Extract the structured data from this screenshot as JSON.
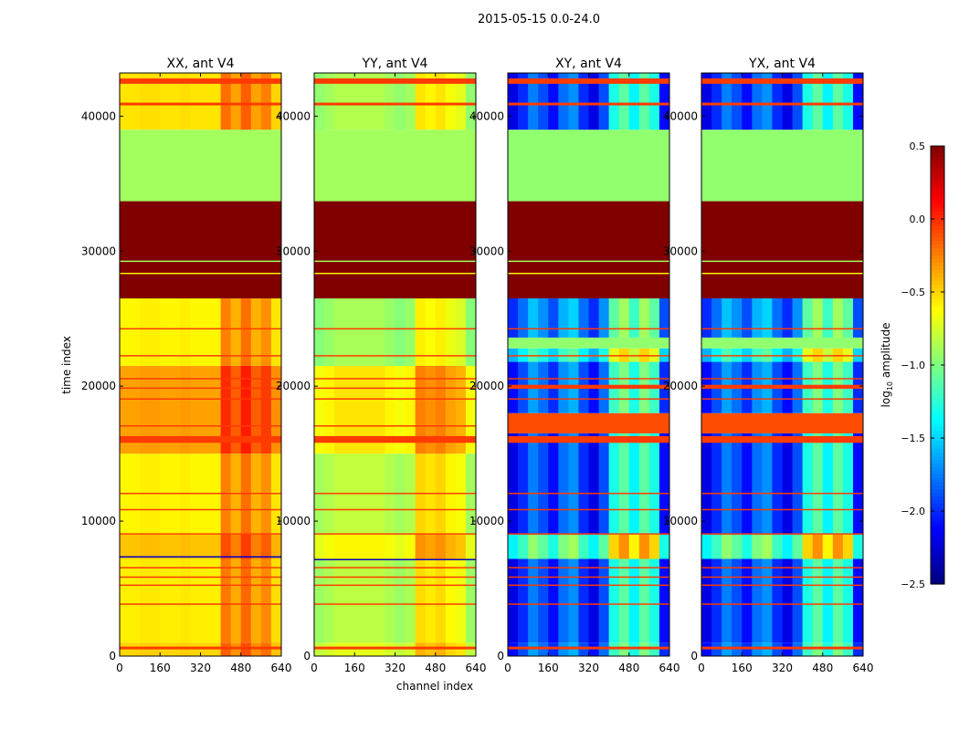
{
  "chart_data": {
    "type": "heatmap",
    "title": "2015-05-15 0.0-24.0",
    "xlabel": "channel index",
    "ylabel": "time index",
    "xlim": [
      0,
      640
    ],
    "ylim": [
      0,
      43200
    ],
    "xticks": [
      "0",
      "160",
      "320",
      "480",
      "640"
    ],
    "xtick_values": [
      0,
      160,
      320,
      480,
      640
    ],
    "yticks": [
      "0",
      "10000",
      "20000",
      "30000",
      "40000"
    ],
    "ytick_values": [
      0,
      10000,
      20000,
      30000,
      40000
    ],
    "colorbar": {
      "label_main": "log",
      "label_sub": "10",
      "label_rest": " amplitude",
      "range": [
        -2.5,
        0.5
      ],
      "ticks": [
        "0.5",
        "0.0",
        "−0.5",
        "−1.0",
        "−1.5",
        "−2.0",
        "−2.5"
      ],
      "tick_values": [
        0.5,
        0.0,
        -0.5,
        -1.0,
        -1.5,
        -2.0,
        -2.5
      ],
      "colormap": "jet"
    },
    "panels": [
      {
        "title": "XX, ant V4",
        "channel_profile": [
          0,
          0,
          0.02,
          0.02,
          0,
          0,
          0.02,
          0,
          0,
          0,
          0.35,
          0.2,
          0.4,
          0.2,
          0.3,
          0.05
        ],
        "bands": [
          [
            0,
            1000,
            -0.5,
            0
          ],
          [
            1000,
            7200,
            -0.58,
            0
          ],
          [
            7200,
            9000,
            -0.45,
            0
          ],
          [
            9000,
            15000,
            -0.6,
            0
          ],
          [
            15000,
            21500,
            -0.35,
            0
          ],
          [
            21500,
            26500,
            -0.6,
            0
          ],
          [
            26500,
            33700,
            0.5,
            1
          ],
          [
            33700,
            39000,
            -0.9,
            1
          ],
          [
            39000,
            43200,
            -0.55,
            0
          ],
          [
            500,
            700,
            -0.05,
            1
          ],
          [
            3800,
            3900,
            -0.05,
            1
          ],
          [
            5200,
            5300,
            -0.05,
            1
          ],
          [
            5800,
            5900,
            -0.05,
            1
          ],
          [
            6500,
            6600,
            -0.05,
            1
          ],
          [
            7300,
            7400,
            -2.3,
            1
          ],
          [
            9000,
            9100,
            -0.05,
            1
          ],
          [
            10800,
            10900,
            -0.05,
            1
          ],
          [
            12000,
            12100,
            -0.05,
            1
          ],
          [
            15800,
            16300,
            -0.05,
            1
          ],
          [
            17000,
            17100,
            -0.05,
            1
          ],
          [
            19000,
            19100,
            -0.05,
            1
          ],
          [
            19800,
            19900,
            -0.05,
            1
          ],
          [
            20500,
            20600,
            -0.05,
            1
          ],
          [
            22200,
            22300,
            -0.05,
            1
          ],
          [
            24200,
            24300,
            -0.05,
            1
          ],
          [
            29200,
            29300,
            -0.9,
            1
          ],
          [
            28300,
            28400,
            -0.6,
            1
          ],
          [
            40800,
            41000,
            -0.05,
            1
          ],
          [
            42400,
            42800,
            -0.05,
            1
          ]
        ]
      },
      {
        "title": "YY, ant V4",
        "channel_profile": [
          -0.1,
          -0.05,
          0,
          0,
          0,
          0,
          0,
          -0.05,
          -0.1,
          -0.05,
          0.3,
          0.25,
          0.3,
          0.2,
          0.15,
          -0.1
        ],
        "bands": [
          [
            0,
            1000,
            -0.7,
            0
          ],
          [
            1000,
            7200,
            -0.82,
            0
          ],
          [
            7200,
            9000,
            -0.6,
            0
          ],
          [
            9000,
            15000,
            -0.8,
            0
          ],
          [
            15000,
            21500,
            -0.55,
            0
          ],
          [
            21500,
            26500,
            -0.88,
            0
          ],
          [
            26500,
            33700,
            0.5,
            1
          ],
          [
            33700,
            39000,
            -0.9,
            1
          ],
          [
            39000,
            43200,
            -0.85,
            0
          ],
          [
            500,
            700,
            -0.05,
            1
          ],
          [
            3800,
            3900,
            -0.05,
            1
          ],
          [
            5200,
            5300,
            -0.05,
            1
          ],
          [
            5800,
            5900,
            -0.05,
            1
          ],
          [
            6500,
            6600,
            -0.05,
            1
          ],
          [
            7100,
            7200,
            -2.3,
            1
          ],
          [
            9000,
            9100,
            -0.05,
            1
          ],
          [
            10800,
            10900,
            -0.05,
            1
          ],
          [
            12000,
            12100,
            -0.05,
            1
          ],
          [
            15800,
            16300,
            -0.05,
            1
          ],
          [
            17000,
            17100,
            -0.05,
            1
          ],
          [
            19000,
            19100,
            -0.05,
            1
          ],
          [
            19800,
            19900,
            -0.05,
            1
          ],
          [
            20500,
            20600,
            -0.05,
            1
          ],
          [
            22200,
            22300,
            -0.05,
            1
          ],
          [
            24200,
            24300,
            -0.05,
            1
          ],
          [
            29200,
            29300,
            -0.9,
            1
          ],
          [
            28300,
            28400,
            -0.6,
            1
          ],
          [
            40800,
            41000,
            -0.05,
            1
          ],
          [
            42400,
            42800,
            -0.05,
            1
          ]
        ]
      },
      {
        "title": "XY, ant V4",
        "channel_profile": [
          -0.2,
          0,
          0.25,
          0.1,
          -0.1,
          0.2,
          0.3,
          0,
          -0.2,
          0.1,
          0.7,
          0.9,
          0.6,
          0.9,
          0.7,
          -0.1
        ],
        "bands": [
          [
            0,
            1000,
            -1.9,
            0
          ],
          [
            1000,
            7200,
            -2.0,
            0
          ],
          [
            7200,
            9000,
            -1.2,
            0
          ],
          [
            9000,
            16500,
            -2.0,
            0
          ],
          [
            16500,
            18000,
            -0.1,
            1
          ],
          [
            18000,
            21800,
            -1.9,
            0
          ],
          [
            21800,
            22800,
            -1.4,
            0
          ],
          [
            22800,
            23600,
            -0.95,
            1
          ],
          [
            23600,
            26500,
            -1.8,
            0
          ],
          [
            26500,
            33700,
            0.5,
            1
          ],
          [
            33700,
            39000,
            -0.95,
            1
          ],
          [
            39000,
            43200,
            -2.0,
            0
          ],
          [
            500,
            700,
            -0.05,
            1
          ],
          [
            3800,
            3900,
            -0.05,
            1
          ],
          [
            5200,
            5300,
            -0.05,
            1
          ],
          [
            5800,
            5900,
            -0.05,
            1
          ],
          [
            6500,
            6600,
            -0.05,
            1
          ],
          [
            9000,
            9100,
            -0.05,
            1
          ],
          [
            10800,
            10900,
            -0.05,
            1
          ],
          [
            12000,
            12100,
            -0.05,
            1
          ],
          [
            15800,
            16300,
            -0.05,
            1
          ],
          [
            19000,
            19100,
            -0.05,
            1
          ],
          [
            19800,
            20100,
            -0.05,
            1
          ],
          [
            20500,
            20600,
            -0.05,
            1
          ],
          [
            22200,
            22300,
            -0.05,
            1
          ],
          [
            24200,
            24300,
            -0.05,
            1
          ],
          [
            29200,
            29300,
            -0.9,
            1
          ],
          [
            28300,
            28400,
            -0.6,
            1
          ],
          [
            40800,
            41000,
            -0.05,
            1
          ],
          [
            42400,
            42800,
            -0.05,
            1
          ]
        ]
      },
      {
        "title": "YX, ant V4",
        "channel_profile": [
          -0.2,
          0,
          0.25,
          0.1,
          -0.1,
          0.2,
          0.3,
          0,
          -0.2,
          0.1,
          0.7,
          0.9,
          0.6,
          0.9,
          0.7,
          -0.1
        ],
        "bands": [
          [
            0,
            1000,
            -1.9,
            0
          ],
          [
            1000,
            7200,
            -2.0,
            0
          ],
          [
            7200,
            9000,
            -1.2,
            0
          ],
          [
            9000,
            16500,
            -2.0,
            0
          ],
          [
            16500,
            18000,
            -0.1,
            1
          ],
          [
            18000,
            21800,
            -1.9,
            0
          ],
          [
            21800,
            22800,
            -1.4,
            0
          ],
          [
            22800,
            23600,
            -0.95,
            1
          ],
          [
            23600,
            26500,
            -1.8,
            0
          ],
          [
            26500,
            33700,
            0.5,
            1
          ],
          [
            33700,
            39000,
            -0.95,
            1
          ],
          [
            39000,
            43200,
            -2.0,
            0
          ],
          [
            500,
            700,
            -0.05,
            1
          ],
          [
            3800,
            3900,
            -0.05,
            1
          ],
          [
            5200,
            5300,
            -0.05,
            1
          ],
          [
            5800,
            5900,
            -0.05,
            1
          ],
          [
            6500,
            6600,
            -0.05,
            1
          ],
          [
            9000,
            9100,
            -0.05,
            1
          ],
          [
            10800,
            10900,
            -0.05,
            1
          ],
          [
            12000,
            12100,
            -0.05,
            1
          ],
          [
            15800,
            16300,
            -0.05,
            1
          ],
          [
            19000,
            19100,
            -0.05,
            1
          ],
          [
            19800,
            20100,
            -0.05,
            1
          ],
          [
            20500,
            20600,
            -0.05,
            1
          ],
          [
            22200,
            22300,
            -0.05,
            1
          ],
          [
            24200,
            24300,
            -0.05,
            1
          ],
          [
            29200,
            29300,
            -0.9,
            1
          ],
          [
            28300,
            28400,
            -0.6,
            1
          ],
          [
            40800,
            41000,
            -0.05,
            1
          ],
          [
            42400,
            42800,
            -0.05,
            1
          ]
        ]
      }
    ]
  }
}
